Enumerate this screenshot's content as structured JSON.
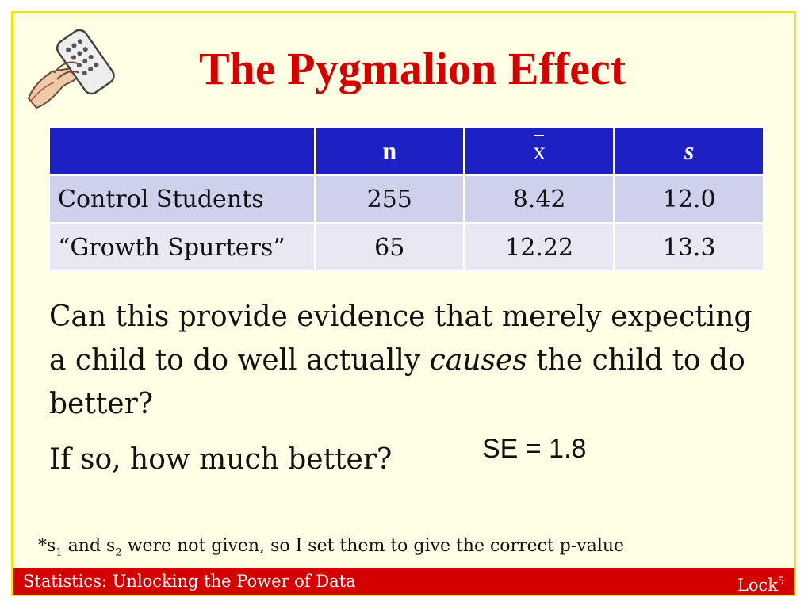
{
  "slide": {
    "title": "The Pygmalion Effect",
    "table": {
      "headers": [
        "",
        "n",
        "x",
        "s"
      ],
      "rows": [
        {
          "label": "Control Students",
          "n": "255",
          "mean": "8.42",
          "s": "12.0"
        },
        {
          "label": "“Growth Spurters”",
          "n": "65",
          "mean": "12.22",
          "s": "13.3"
        }
      ]
    },
    "question_part1": "Can this provide evidence that merely expecting a child to do well actually",
    "question_emph": "causes",
    "question_part2": "the child to do better?",
    "followup": "If so, how much better?",
    "se": "SE = 1.8",
    "footnote": {
      "prefix": "*s",
      "sub1": "1",
      "and": " and s",
      "sub2": "2",
      "rest": " were not given, so I set them to give the correct p-value"
    }
  },
  "footer": {
    "left": "Statistics: Unlocking the Power of Data",
    "right": "Lock",
    "right_sup": "5"
  },
  "colors": {
    "title": "#d40000",
    "header_bg": "#1d20c2",
    "footer_bg": "#d40000",
    "frame": "#f2e600"
  }
}
